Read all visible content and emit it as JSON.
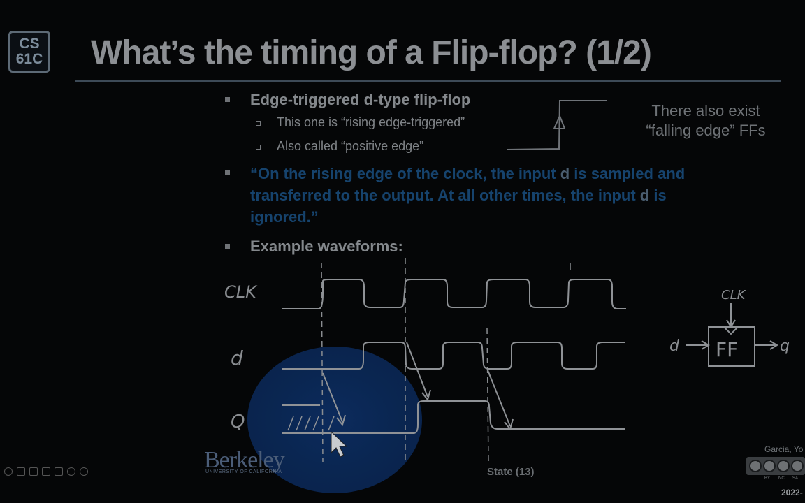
{
  "logo": {
    "line1": "CS",
    "line2": "61C"
  },
  "title": "What’s the timing of a Flip-flop? (1/2)",
  "bullets": {
    "b1": "Edge-triggered d-type flip-flop",
    "b1_sub1": "This one is “rising edge-triggered”",
    "b1_sub2": "Also called “positive edge”",
    "quote_line1_pre": "“On the rising edge of the clock, the input ",
    "quote_line1_d": "d",
    "quote_line1_post": " is sampled and",
    "quote_line2_pre": "transferred to the output.  At all other times, the input ",
    "quote_line2_d": "d",
    "quote_line2_post": " is",
    "quote_line3": "ignored.”",
    "b3": "Example waveforms:"
  },
  "aside": {
    "line1": "There also exist",
    "line2": "“falling edge” FFs"
  },
  "waveform": {
    "clk_label": "CLK",
    "d_label": "d",
    "q_label": "Q"
  },
  "ff_block": {
    "label": "FF",
    "clk": "CLK",
    "input": "d",
    "output": "q"
  },
  "footer": {
    "university": "Berkeley",
    "university_sub": "UNIVERSITY OF CALIFORNIA",
    "center": "State (13)",
    "author": "Garcia, Yo",
    "year": "2022-",
    "cc_labels": [
      "BY",
      "NC",
      "SA"
    ]
  },
  "colors": {
    "background": "#050607",
    "quote_blue": "#16436d",
    "title_gray": "#8c8f93",
    "spotlight_blue": "#0b2a5c"
  }
}
